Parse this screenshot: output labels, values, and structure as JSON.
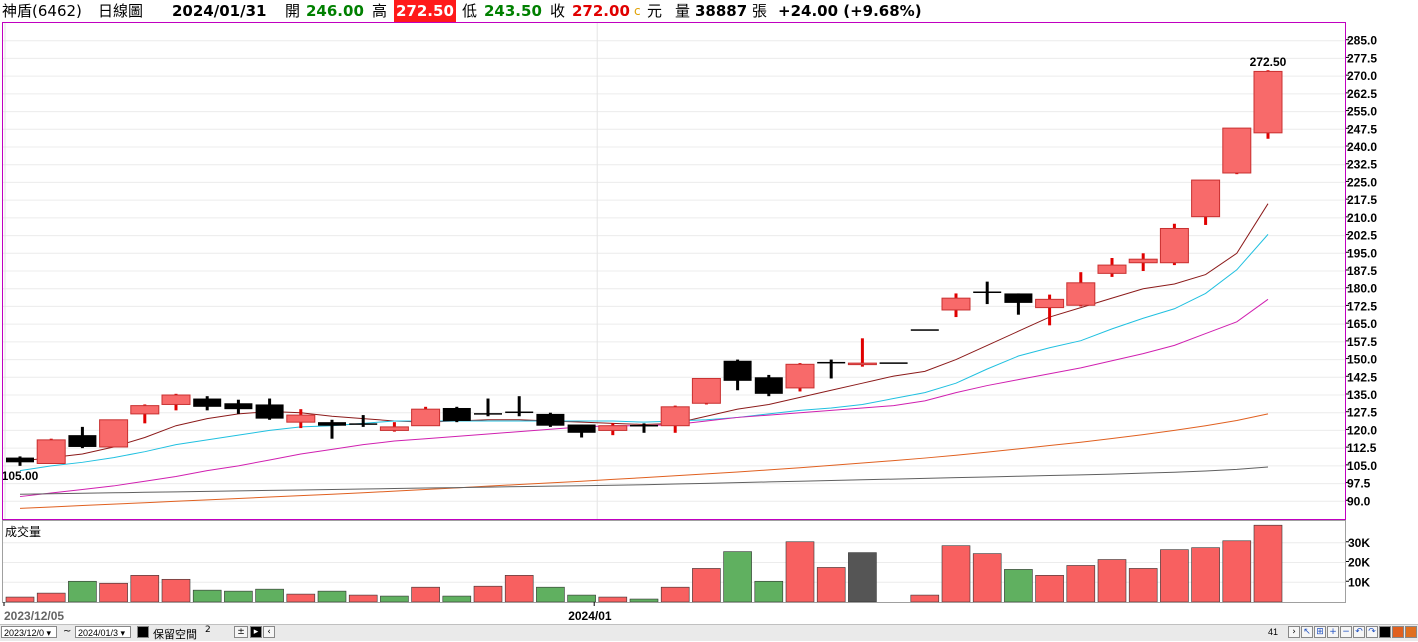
{
  "header": {
    "stock": "神盾(6462)",
    "period": "日線圖",
    "date": "2024/01/31",
    "open_label": "開",
    "open": "246.00",
    "high_label": "高",
    "high": "272.50",
    "low_label": "低",
    "low": "243.50",
    "close_label": "收",
    "close": "272.00",
    "close_mark": "c",
    "currency": "元",
    "volume_label": "量",
    "volume": "38887",
    "volume_unit": "張",
    "change": "+24.00 (+9.68%)"
  },
  "volume_panel": {
    "title": "成交量"
  },
  "footer": {
    "start_date": "2023/12/0",
    "tilde": "~",
    "end_date": "2024/01/3",
    "keep_space_label": "保留空間",
    "keep_space_value": "2",
    "count": "41"
  },
  "colors": {
    "up": "#f86a6a",
    "up_border": "#c83030",
    "up_wick": "#e00000",
    "down": "#000000",
    "ma5": "#8b1a1a",
    "ma10": "#20c0e0",
    "ma20": "#d020b0",
    "ma60": "#e06020",
    "ma120": "#606060",
    "vol_up": "#f86060",
    "vol_down": "#60b060",
    "vol_flat": "#555555"
  },
  "chart_data": [
    {
      "type": "candlestick",
      "title": "日線圖",
      "x_labels": [
        {
          "label": "2023/12/05",
          "index": 0
        },
        {
          "label": "2024/01",
          "index": 19
        }
      ],
      "ylim": [
        82.5,
        292.5
      ],
      "yticks": [
        "90.0",
        "97.5",
        "105.0",
        "112.5",
        "120.0",
        "127.5",
        "135.0",
        "142.5",
        "150.0",
        "157.5",
        "165.0",
        "172.5",
        "180.0",
        "187.5",
        "195.0",
        "202.5",
        "210.0",
        "217.5",
        "225.0",
        "232.5",
        "240.0",
        "247.5",
        "255.0",
        "262.5",
        "270.0",
        "277.5",
        "285.0"
      ],
      "annotations": [
        {
          "text": "272.50",
          "index": 40,
          "value": 272.5,
          "pos": "above"
        },
        {
          "text": "105.00",
          "index": 0,
          "value": 105.0,
          "pos": "below"
        }
      ],
      "candles": [
        {
          "o": 108.5,
          "h": 109.0,
          "l": 105.0,
          "c": 106.5
        },
        {
          "o": 106.0,
          "h": 116.5,
          "l": 106.0,
          "c": 116.0
        },
        {
          "o": 118.0,
          "h": 121.5,
          "l": 112.5,
          "c": 113.0
        },
        {
          "o": 113.0,
          "h": 124.5,
          "l": 113.0,
          "c": 124.5
        },
        {
          "o": 127.0,
          "h": 131.0,
          "l": 123.0,
          "c": 130.5
        },
        {
          "o": 131.0,
          "h": 135.5,
          "l": 128.5,
          "c": 135.0
        },
        {
          "o": 133.5,
          "h": 134.5,
          "l": 128.5,
          "c": 130.0
        },
        {
          "o": 131.5,
          "h": 133.0,
          "l": 127.0,
          "c": 129.0
        },
        {
          "o": 131.0,
          "h": 133.5,
          "l": 124.5,
          "c": 125.0
        },
        {
          "o": 123.5,
          "h": 129.0,
          "l": 121.0,
          "c": 126.5
        },
        {
          "o": 123.5,
          "h": 124.5,
          "l": 116.5,
          "c": 122.0
        },
        {
          "o": 123.0,
          "h": 126.5,
          "l": 121.5,
          "c": 122.5
        },
        {
          "o": 120.0,
          "h": 123.5,
          "l": 119.5,
          "c": 121.5
        },
        {
          "o": 122.0,
          "h": 130.0,
          "l": 122.0,
          "c": 129.0
        },
        {
          "o": 129.5,
          "h": 130.0,
          "l": 123.5,
          "c": 124.0
        },
        {
          "o": 127.0,
          "h": 133.5,
          "l": 126.0,
          "c": 127.0
        },
        {
          "o": 128.0,
          "h": 134.5,
          "l": 126.0,
          "c": 127.5
        },
        {
          "o": 127.0,
          "h": 127.5,
          "l": 121.5,
          "c": 122.0
        },
        {
          "o": 122.5,
          "h": 122.5,
          "l": 117.0,
          "c": 119.0
        },
        {
          "o": 120.0,
          "h": 123.0,
          "l": 118.0,
          "c": 122.0
        },
        {
          "o": 122.0,
          "h": 123.0,
          "l": 119.0,
          "c": 122.0
        },
        {
          "o": 122.0,
          "h": 130.5,
          "l": 119.0,
          "c": 130.0
        },
        {
          "o": 131.5,
          "h": 142.0,
          "l": 131.0,
          "c": 142.0
        },
        {
          "o": 149.5,
          "h": 150.0,
          "l": 137.0,
          "c": 141.0
        },
        {
          "o": 142.5,
          "h": 143.5,
          "l": 134.5,
          "c": 135.5
        },
        {
          "o": 138.0,
          "h": 148.5,
          "l": 136.5,
          "c": 148.0
        },
        {
          "o": 149.0,
          "h": 150.0,
          "l": 142.0,
          "c": 148.5
        },
        {
          "o": 148.0,
          "h": 159.0,
          "l": 147.0,
          "c": 148.5
        },
        {
          "o": 148.5,
          "h": 148.5,
          "l": 148.5,
          "c": 148.5
        },
        {
          "o": 162.5,
          "h": 162.5,
          "l": 162.5,
          "c": 162.5
        },
        {
          "o": 171.0,
          "h": 178.0,
          "l": 168.0,
          "c": 176.0
        },
        {
          "o": 178.5,
          "h": 183.0,
          "l": 173.5,
          "c": 178.5
        },
        {
          "o": 178.0,
          "h": 178.0,
          "l": 169.0,
          "c": 174.0
        },
        {
          "o": 172.0,
          "h": 177.5,
          "l": 164.5,
          "c": 175.5
        },
        {
          "o": 173.0,
          "h": 187.0,
          "l": 172.5,
          "c": 182.5
        },
        {
          "o": 186.5,
          "h": 193.0,
          "l": 185.0,
          "c": 190.0
        },
        {
          "o": 191.0,
          "h": 195.0,
          "l": 187.5,
          "c": 192.5
        },
        {
          "o": 191.0,
          "h": 207.5,
          "l": 190.0,
          "c": 205.5
        },
        {
          "o": 210.5,
          "h": 226.0,
          "l": 207.0,
          "c": 226.0
        },
        {
          "o": 229.0,
          "h": 248.0,
          "l": 228.5,
          "c": 248.0
        },
        {
          "o": 246.0,
          "h": 272.5,
          "l": 243.5,
          "c": 272.0
        }
      ],
      "ma_series": [
        {
          "values": [
            107,
            108.5,
            110,
            113,
            117,
            122,
            125,
            127,
            128,
            127.5,
            126,
            125,
            124,
            123.5,
            124,
            124.5,
            124.5,
            124,
            123.5,
            123,
            122.5,
            123,
            126,
            129,
            131,
            134,
            137,
            140,
            143,
            145,
            150,
            156,
            162,
            168,
            172,
            176,
            180,
            182,
            186,
            195,
            216
          ]
        },
        {
          "values": [
            103,
            105,
            106.5,
            108.5,
            111,
            114,
            116,
            118,
            120,
            121.5,
            122,
            123,
            124,
            124,
            124,
            124,
            124,
            124,
            124,
            124,
            123.5,
            124,
            124.5,
            125.5,
            127,
            128.5,
            129.5,
            131,
            133.5,
            136,
            140,
            146,
            151.5,
            155,
            158,
            163,
            167.5,
            171.5,
            178,
            188,
            203
          ]
        },
        {
          "values": [
            92,
            93.5,
            95,
            96.5,
            98.5,
            100.5,
            103,
            105,
            107.5,
            110,
            112,
            114,
            115.5,
            116.5,
            117.5,
            118.5,
            119.5,
            120.5,
            121.5,
            122,
            122,
            122.5,
            124,
            125.5,
            126.5,
            127.5,
            128.5,
            129.5,
            130.5,
            132.5,
            136,
            139,
            141.5,
            144,
            146.5,
            149.5,
            152.5,
            156,
            161,
            166,
            175.5
          ]
        },
        {
          "values": [
            87,
            87.6,
            88.2,
            88.8,
            89.4,
            90,
            90.6,
            91.2,
            91.8,
            92.4,
            93,
            93.6,
            94.3,
            95,
            95.7,
            96.4,
            97.1,
            97.8,
            98.5,
            99.3,
            100,
            100.8,
            101.6,
            102.4,
            103.3,
            104.2,
            105.2,
            106.2,
            107.2,
            108.3,
            109.5,
            110.8,
            112.2,
            113.6,
            115,
            116.6,
            118.2,
            120,
            122,
            124.2,
            127
          ]
        },
        {
          "values": [
            93,
            93.2,
            93.4,
            93.6,
            93.8,
            94,
            94.2,
            94.4,
            94.6,
            94.8,
            95,
            95.2,
            95.4,
            95.6,
            95.8,
            96,
            96.2,
            96.4,
            96.6,
            96.8,
            97,
            97.3,
            97.6,
            97.9,
            98.2,
            98.5,
            98.8,
            99.1,
            99.4,
            99.7,
            100,
            100.3,
            100.6,
            100.9,
            101.2,
            101.5,
            101.9,
            102.3,
            102.8,
            103.5,
            104.5
          ]
        }
      ]
    },
    {
      "type": "bar",
      "title": "成交量",
      "ylim": [
        0,
        40000
      ],
      "yticks": [
        "10K",
        "20K",
        "30K"
      ],
      "values": [
        2500,
        4500,
        10500,
        9500,
        13500,
        11500,
        6000,
        5500,
        6500,
        4000,
        5500,
        3500,
        3000,
        7500,
        3000,
        8000,
        13500,
        7500,
        3500,
        2500,
        1500,
        7500,
        17000,
        25500,
        10500,
        30500,
        17500,
        25000,
        0,
        3500,
        28500,
        24500,
        16500,
        13500,
        18500,
        21500,
        17000,
        26500,
        27500,
        31000,
        38887
      ],
      "dir": [
        "u",
        "u",
        "d",
        "u",
        "u",
        "u",
        "d",
        "d",
        "d",
        "u",
        "d",
        "u",
        "d",
        "u",
        "d",
        "u",
        "u",
        "d",
        "d",
        "u",
        "d",
        "u",
        "u",
        "d",
        "d",
        "u",
        "u",
        "f",
        "n",
        "u",
        "u",
        "u",
        "d",
        "u",
        "u",
        "u",
        "u",
        "u",
        "u",
        "u",
        "u"
      ]
    }
  ]
}
